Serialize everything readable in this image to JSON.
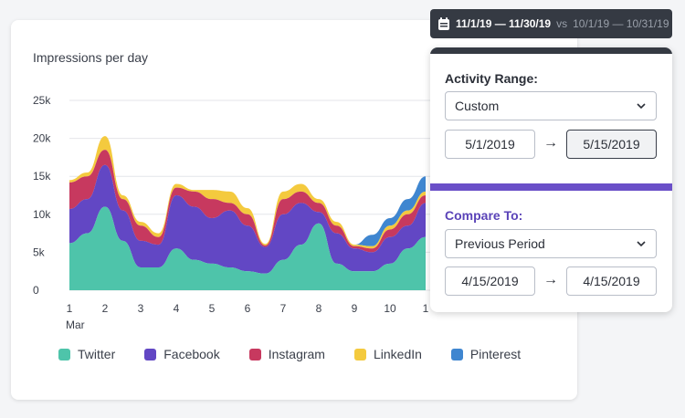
{
  "chart": {
    "title": "Impressions per day",
    "month_label": "Mar"
  },
  "date_bar": {
    "primary_range": "11/1/19 — 11/30/19",
    "vs": "vs",
    "compare_range": "10/1/19 — 10/31/19"
  },
  "panel": {
    "activity_label": "Activity Range:",
    "activity_select": "Custom",
    "activity_start": "5/1/2019",
    "activity_end": "5/15/2019",
    "compare_label": "Compare To:",
    "compare_select": "Previous Period",
    "compare_start": "4/15/2019",
    "compare_end": "4/15/2019",
    "arrow": "→"
  },
  "colors": {
    "twitter": "#4ec4aa",
    "facebook": "#6247c4",
    "instagram": "#c7395f",
    "linkedin": "#f4ca3e",
    "pinterest": "#3f86d0"
  },
  "chart_data": {
    "type": "area",
    "stacked": true,
    "title": "Impressions per day",
    "xlabel": "Mar",
    "ylabel": "",
    "x": [
      1,
      1.5,
      2,
      2.5,
      3,
      3.5,
      4,
      4.5,
      5,
      5.5,
      6,
      6.5,
      7,
      7.5,
      8,
      8.5,
      9,
      9.5,
      10,
      10.5,
      11
    ],
    "x_ticks": [
      "1",
      "2",
      "3",
      "4",
      "5",
      "6",
      "7",
      "8",
      "9",
      "10",
      "1"
    ],
    "y_ticks": [
      "0",
      "5k",
      "10k",
      "15k",
      "20k",
      "25k"
    ],
    "ylim": [
      0,
      25000
    ],
    "legend": "bottom",
    "grid": true,
    "series": [
      {
        "name": "Twitter",
        "color": "#4ec4aa",
        "values": [
          6200,
          7500,
          11000,
          6500,
          3000,
          3000,
          5500,
          4000,
          3500,
          3000,
          2500,
          2200,
          4000,
          6000,
          8800,
          3500,
          2500,
          2500,
          3500,
          5500,
          7000
        ]
      },
      {
        "name": "Facebook",
        "color": "#6247c4",
        "values": [
          4500,
          4500,
          5500,
          4000,
          3500,
          3000,
          7000,
          7000,
          6000,
          7500,
          6000,
          3500,
          6000,
          5500,
          1500,
          4000,
          3000,
          2500,
          3500,
          3000,
          4500
        ]
      },
      {
        "name": "Instagram",
        "color": "#c7395f",
        "values": [
          3500,
          3000,
          2000,
          1500,
          2000,
          1000,
          1000,
          2000,
          2500,
          1000,
          1500,
          200,
          2000,
          1500,
          1200,
          1000,
          300,
          500,
          1000,
          1500,
          1000
        ]
      },
      {
        "name": "LinkedIn",
        "color": "#f4ca3e",
        "values": [
          300,
          500,
          1800,
          500,
          500,
          500,
          500,
          200,
          1200,
          1500,
          800,
          200,
          1000,
          1000,
          500,
          500,
          200,
          300,
          500,
          500,
          500
        ]
      },
      {
        "name": "Pinterest",
        "color": "#3f86d0",
        "values": [
          0,
          0,
          0,
          0,
          0,
          0,
          0,
          0,
          0,
          0,
          0,
          0,
          0,
          0,
          0,
          0,
          0,
          1500,
          1000,
          1500,
          2000
        ]
      }
    ]
  }
}
